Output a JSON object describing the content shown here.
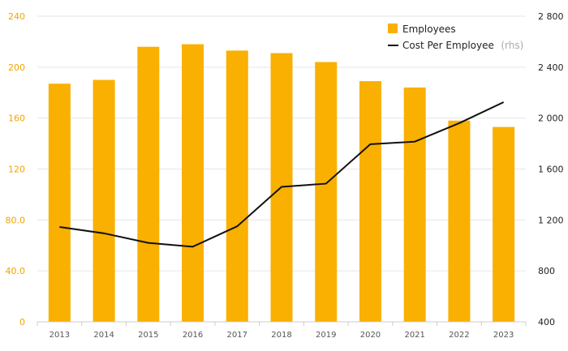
{
  "chart_data": {
    "type": "bar",
    "categories": [
      "2013",
      "2014",
      "2015",
      "2016",
      "2017",
      "2018",
      "2019",
      "2020",
      "2021",
      "2022",
      "2023"
    ],
    "series": [
      {
        "name": "Employees",
        "type": "bar",
        "axis": "left",
        "color": "#f9b000",
        "values": [
          187,
          190,
          216,
          218,
          213,
          211,
          204,
          189,
          184,
          158,
          153
        ]
      },
      {
        "name": "Cost Per Employee",
        "name_suffix": "(rhs)",
        "type": "line",
        "axis": "right",
        "color": "#111111",
        "values": [
          1145,
          1095,
          1020,
          990,
          1150,
          1460,
          1485,
          1795,
          1815,
          1960,
          2125
        ]
      }
    ],
    "y_left": {
      "ylim": [
        0,
        240
      ],
      "ticks": [
        "0",
        "40.0",
        "80.0",
        "120",
        "160",
        "200",
        "240"
      ],
      "tick_values": [
        0,
        40,
        80,
        120,
        160,
        200,
        240
      ],
      "color": "#f0a500"
    },
    "y_right": {
      "ylim": [
        400,
        2800
      ],
      "ticks": [
        "400",
        "800",
        "1 200",
        "1 600",
        "2 000",
        "2 400",
        "2 800"
      ],
      "tick_values": [
        400,
        800,
        1200,
        1600,
        2000,
        2400,
        2800
      ]
    },
    "grid": true,
    "legend": "top-right"
  }
}
